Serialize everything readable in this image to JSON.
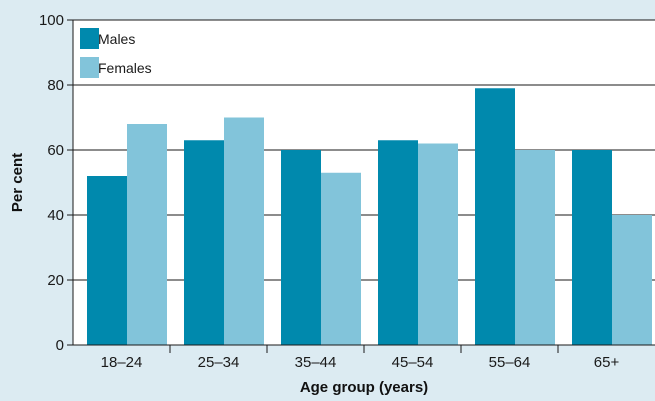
{
  "colors": {
    "background": "#dcebf2",
    "plot_background": "#ffffff",
    "males": "#0089ad",
    "females": "#82c4da",
    "grid": "#1a1a1a"
  },
  "chart_data": {
    "type": "bar",
    "title": "",
    "xlabel": "Age group (years)",
    "ylabel": "Per cent",
    "categories": [
      "18–24",
      "25–34",
      "35–44",
      "45–54",
      "55–64",
      "65+"
    ],
    "series": [
      {
        "name": "Males",
        "color": "#0089ad",
        "values": [
          52,
          63,
          60,
          63,
          79,
          60
        ]
      },
      {
        "name": "Females",
        "color": "#82c4da",
        "values": [
          68,
          70,
          53,
          62,
          60,
          40
        ]
      }
    ],
    "ylim": [
      0,
      100
    ],
    "yticks": [
      0,
      20,
      40,
      60,
      80,
      100
    ],
    "grid": true,
    "legend_position": "top-left"
  }
}
